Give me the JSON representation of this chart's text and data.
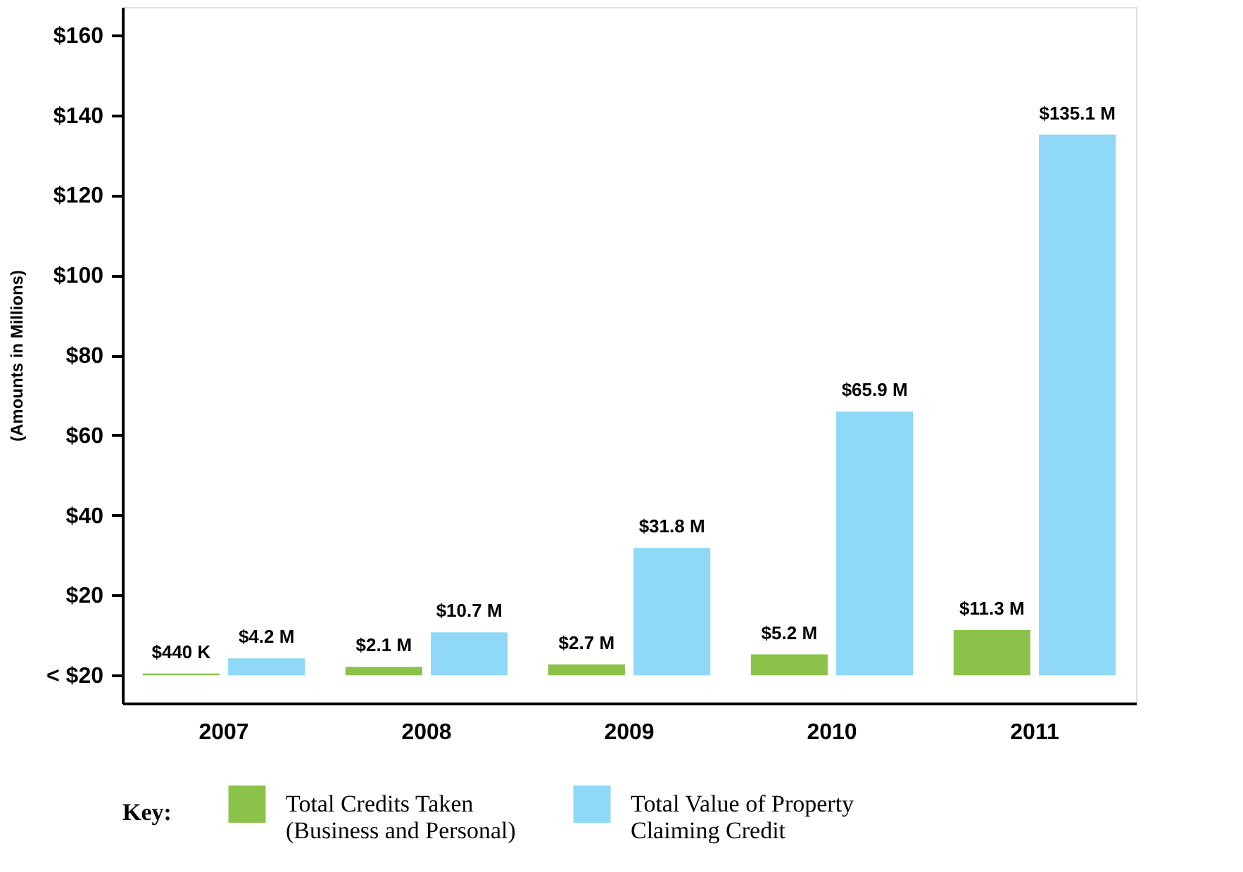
{
  "chart_data": {
    "type": "bar",
    "ylabel": "(Amounts in Millions)",
    "legend_title": "Key:",
    "legend": "bottom",
    "grid": false,
    "categories": [
      "2007",
      "2008",
      "2009",
      "2010",
      "2011"
    ],
    "series": [
      {
        "name": "Total Credits Taken\n(Business and Personal)",
        "color": "#8bc34a",
        "values": [
          0.44,
          2.1,
          2.7,
          5.2,
          11.3
        ],
        "value_labels": [
          "$440 K",
          "$2.1 M",
          "$2.7 M",
          "$5.2 M",
          "$11.3 M"
        ]
      },
      {
        "name": "Total Value of Property\nClaiming Credit",
        "color": "#8fd8f8",
        "values": [
          4.2,
          10.7,
          31.8,
          65.9,
          135.1
        ],
        "value_labels": [
          "$4.2 M",
          "$10.7 M",
          "$31.8 M",
          "$65.9 M",
          "$135.1 M"
        ]
      }
    ],
    "ylim": [
      -7,
      167
    ],
    "yticks": [
      {
        "value": 0,
        "label": "< $20"
      },
      {
        "value": 20,
        "label": "$20"
      },
      {
        "value": 40,
        "label": "$40"
      },
      {
        "value": 60,
        "label": "$60"
      },
      {
        "value": 80,
        "label": "$80"
      },
      {
        "value": 100,
        "label": "$100"
      },
      {
        "value": 120,
        "label": "$120"
      },
      {
        "value": 140,
        "label": "$140"
      },
      {
        "value": 160,
        "label": "$160"
      }
    ]
  }
}
